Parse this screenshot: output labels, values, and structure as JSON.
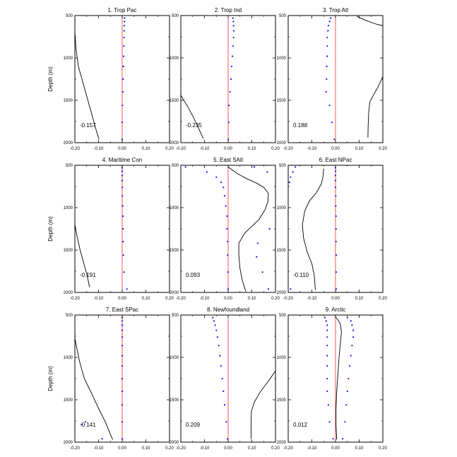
{
  "chart_data": {
    "type": "line",
    "ylabel": "Depth (m)",
    "xlim": [
      -0.2,
      0.2
    ],
    "ylim": [
      500,
      2000
    ],
    "x_ticks": [
      "-0.20",
      "-0.10",
      "0.00",
      "0.10",
      "0.20"
    ],
    "y_ticks": [
      "500",
      "1000",
      "1500",
      "2000"
    ],
    "panels": [
      {
        "title": "1. Trop Pac",
        "annotation": "-0.157",
        "line": [
          [
            -0.205,
            500
          ],
          [
            -0.2,
            700
          ],
          [
            -0.195,
            900
          ],
          [
            -0.185,
            1100
          ],
          [
            -0.165,
            1300
          ],
          [
            -0.145,
            1500
          ],
          [
            -0.125,
            1700
          ],
          [
            -0.108,
            1870
          ],
          [
            -0.098,
            1960
          ]
        ],
        "dots": [
          [
            0.01,
            530
          ],
          [
            0.01,
            570
          ],
          [
            0.009,
            620
          ],
          [
            0.008,
            680
          ],
          [
            0.008,
            760
          ],
          [
            0.007,
            860
          ],
          [
            0.006,
            980
          ],
          [
            0.005,
            1100
          ],
          [
            0.004,
            1250
          ],
          [
            0.002,
            1400
          ],
          [
            0.001,
            1560
          ],
          [
            0.0,
            1760
          ],
          [
            0.0,
            1960
          ]
        ]
      },
      {
        "title": "2. Trop Ind",
        "annotation": "-0.235",
        "line": [
          [
            -0.2,
            1440
          ],
          [
            -0.17,
            1580
          ],
          [
            -0.145,
            1710
          ],
          [
            -0.125,
            1830
          ],
          [
            -0.105,
            1950
          ]
        ],
        "dots": [
          [
            0.02,
            530
          ],
          [
            0.022,
            570
          ],
          [
            0.023,
            620
          ],
          [
            0.024,
            680
          ],
          [
            0.023,
            760
          ],
          [
            0.021,
            860
          ],
          [
            0.018,
            980
          ],
          [
            0.015,
            1100
          ],
          [
            0.012,
            1250
          ],
          [
            0.008,
            1400
          ],
          [
            0.004,
            1560
          ],
          [
            0.002,
            1760
          ],
          [
            0.001,
            1960
          ]
        ]
      },
      {
        "title": "3. Trop Atl",
        "annotation": "0.188",
        "line_segments": [
          [
            [
              0.09,
              510
            ],
            [
              0.13,
              560
            ],
            [
              0.17,
              600
            ],
            [
              0.2,
              620
            ]
          ],
          [
            [
              0.2,
              1220
            ],
            [
              0.18,
              1340
            ],
            [
              0.16,
              1440
            ],
            [
              0.145,
              1520
            ],
            [
              0.14,
              1650
            ],
            [
              0.138,
              1800
            ],
            [
              0.137,
              1940
            ]
          ]
        ],
        "dots": [
          [
            -0.02,
            530
          ],
          [
            -0.025,
            570
          ],
          [
            -0.03,
            620
          ],
          [
            -0.032,
            680
          ],
          [
            -0.035,
            760
          ],
          [
            -0.035,
            860
          ],
          [
            -0.035,
            980
          ],
          [
            -0.037,
            1100
          ],
          [
            -0.038,
            1250
          ],
          [
            -0.04,
            1400
          ],
          [
            -0.025,
            1560
          ],
          [
            -0.015,
            1760
          ],
          [
            -0.005,
            1960
          ]
        ]
      },
      {
        "title": "4. Maritime Con",
        "annotation": "-0.191",
        "line": [
          [
            -0.2,
            1200
          ],
          [
            -0.19,
            1350
          ],
          [
            -0.178,
            1500
          ],
          [
            -0.163,
            1650
          ],
          [
            -0.15,
            1780
          ],
          [
            -0.138,
            1940
          ]
        ],
        "dots": [
          [
            0.0,
            530
          ],
          [
            0.0,
            570
          ],
          [
            0.0,
            620
          ],
          [
            0.0,
            680
          ],
          [
            0.001,
            760
          ],
          [
            0.001,
            860
          ],
          [
            0.002,
            980
          ],
          [
            0.003,
            1100
          ],
          [
            0.004,
            1250
          ],
          [
            0.004,
            1400
          ],
          [
            0.005,
            1560
          ],
          [
            0.008,
            1760
          ],
          [
            0.02,
            1960
          ]
        ]
      },
      {
        "title": "5. East SAtl",
        "annotation": "0.093",
        "line": [
          [
            0.0,
            520
          ],
          [
            0.04,
            600
          ],
          [
            0.08,
            660
          ],
          [
            0.12,
            710
          ],
          [
            0.15,
            760
          ],
          [
            0.17,
            830
          ],
          [
            0.168,
            930
          ],
          [
            0.155,
            1030
          ],
          [
            0.13,
            1140
          ],
          [
            0.1,
            1220
          ],
          [
            0.07,
            1300
          ],
          [
            0.045,
            1420
          ],
          [
            0.045,
            1560
          ],
          [
            0.05,
            1720
          ],
          [
            0.06,
            1860
          ],
          [
            0.075,
            1990
          ]
        ],
        "dots": [
          [
            -0.18,
            520
          ],
          [
            -0.09,
            580
          ],
          [
            -0.05,
            640
          ],
          [
            -0.03,
            700
          ],
          [
            -0.02,
            760
          ],
          [
            -0.015,
            860
          ],
          [
            -0.01,
            980
          ],
          [
            -0.005,
            1100
          ],
          [
            -0.005,
            1250
          ],
          [
            -0.002,
            1400
          ],
          [
            -0.002,
            1560
          ],
          [
            -0.001,
            1760
          ],
          [
            0.0,
            1960
          ],
          [
            0.11,
            520
          ],
          [
            0.165,
            580
          ],
          [
            0.175,
            1250
          ],
          [
            0.125,
            1420
          ],
          [
            0.12,
            1580
          ],
          [
            0.145,
            1760
          ],
          [
            0.17,
            1960
          ]
        ]
      },
      {
        "title": "6. East NPac",
        "annotation": "-0.110",
        "line": [
          [
            -0.05,
            540
          ],
          [
            -0.053,
            640
          ],
          [
            -0.06,
            720
          ],
          [
            -0.08,
            820
          ],
          [
            -0.11,
            920
          ],
          [
            -0.13,
            1040
          ],
          [
            -0.14,
            1200
          ],
          [
            -0.135,
            1360
          ],
          [
            -0.12,
            1520
          ],
          [
            -0.1,
            1660
          ],
          [
            -0.09,
            1800
          ],
          [
            -0.085,
            1970
          ]
        ],
        "dots": [
          [
            0.0,
            530
          ],
          [
            0.0,
            570
          ],
          [
            0.0,
            620
          ],
          [
            0.0,
            680
          ],
          [
            0.0,
            760
          ],
          [
            0.001,
            860
          ],
          [
            0.001,
            980
          ],
          [
            0.002,
            1100
          ],
          [
            0.002,
            1250
          ],
          [
            0.002,
            1400
          ],
          [
            0.003,
            1560
          ],
          [
            0.003,
            1760
          ],
          [
            0.003,
            1960
          ],
          [
            -0.17,
            520
          ],
          [
            -0.18,
            580
          ],
          [
            -0.19,
            640
          ],
          [
            -0.195,
            700
          ],
          [
            -0.19,
            1960
          ]
        ]
      },
      {
        "title": "7. East SPac",
        "annotation": "-0.141",
        "line": [
          [
            -0.205,
            690
          ],
          [
            -0.195,
            850
          ],
          [
            -0.18,
            1050
          ],
          [
            -0.16,
            1250
          ],
          [
            -0.13,
            1420
          ],
          [
            -0.1,
            1600
          ],
          [
            -0.07,
            1770
          ],
          [
            -0.045,
            1940
          ],
          [
            -0.04,
            1970
          ]
        ],
        "dots": [
          [
            0.0,
            530
          ],
          [
            0.0,
            570
          ],
          [
            0.0,
            620
          ],
          [
            0.0,
            680
          ],
          [
            0.0,
            760
          ],
          [
            0.0,
            860
          ],
          [
            0.0,
            980
          ],
          [
            0.0,
            1100
          ],
          [
            0.0,
            1250
          ],
          [
            0.0,
            1400
          ],
          [
            0.0,
            1560
          ],
          [
            0.0,
            1760
          ],
          [
            0.0,
            1960
          ],
          [
            -0.155,
            1760
          ],
          [
            -0.17,
            1790
          ],
          [
            -0.085,
            1960
          ]
        ]
      },
      {
        "title": "8. Newfoundland",
        "annotation": "0.209",
        "line": [
          [
            0.2,
            1160
          ],
          [
            0.17,
            1280
          ],
          [
            0.135,
            1410
          ],
          [
            0.11,
            1530
          ],
          [
            0.098,
            1640
          ],
          [
            0.097,
            1800
          ],
          [
            0.097,
            1960
          ]
        ],
        "dots": [
          [
            -0.065,
            530
          ],
          [
            -0.06,
            570
          ],
          [
            -0.055,
            620
          ],
          [
            -0.05,
            680
          ],
          [
            -0.045,
            760
          ],
          [
            -0.04,
            860
          ],
          [
            -0.035,
            980
          ],
          [
            -0.03,
            1100
          ],
          [
            -0.025,
            1250
          ],
          [
            -0.02,
            1400
          ],
          [
            -0.015,
            1560
          ],
          [
            -0.008,
            1760
          ],
          [
            -0.003,
            1960
          ]
        ]
      },
      {
        "title": "9. Arctic",
        "annotation": "0.012",
        "line": [
          [
            0.0,
            520
          ],
          [
            0.02,
            600
          ],
          [
            0.025,
            700
          ],
          [
            0.02,
            850
          ],
          [
            0.015,
            1000
          ],
          [
            0.01,
            1200
          ],
          [
            0.005,
            1400
          ],
          [
            0.002,
            1600
          ],
          [
            0.002,
            1800
          ],
          [
            0.005,
            1970
          ]
        ],
        "dots": [
          [
            -0.045,
            530
          ],
          [
            -0.04,
            570
          ],
          [
            -0.035,
            620
          ],
          [
            -0.035,
            680
          ],
          [
            -0.035,
            760
          ],
          [
            -0.035,
            860
          ],
          [
            -0.035,
            980
          ],
          [
            -0.035,
            1100
          ],
          [
            -0.035,
            1250
          ],
          [
            -0.035,
            1400
          ],
          [
            -0.03,
            1560
          ],
          [
            -0.025,
            1760
          ],
          [
            -0.01,
            1960
          ],
          [
            0.05,
            530
          ],
          [
            0.065,
            570
          ],
          [
            0.07,
            620
          ],
          [
            0.075,
            680
          ],
          [
            0.075,
            760
          ],
          [
            0.07,
            860
          ],
          [
            0.065,
            980
          ],
          [
            0.06,
            1100
          ],
          [
            0.055,
            1250
          ],
          [
            0.05,
            1400
          ],
          [
            0.045,
            1560
          ],
          [
            0.04,
            1760
          ],
          [
            0.03,
            1960
          ]
        ]
      }
    ]
  }
}
